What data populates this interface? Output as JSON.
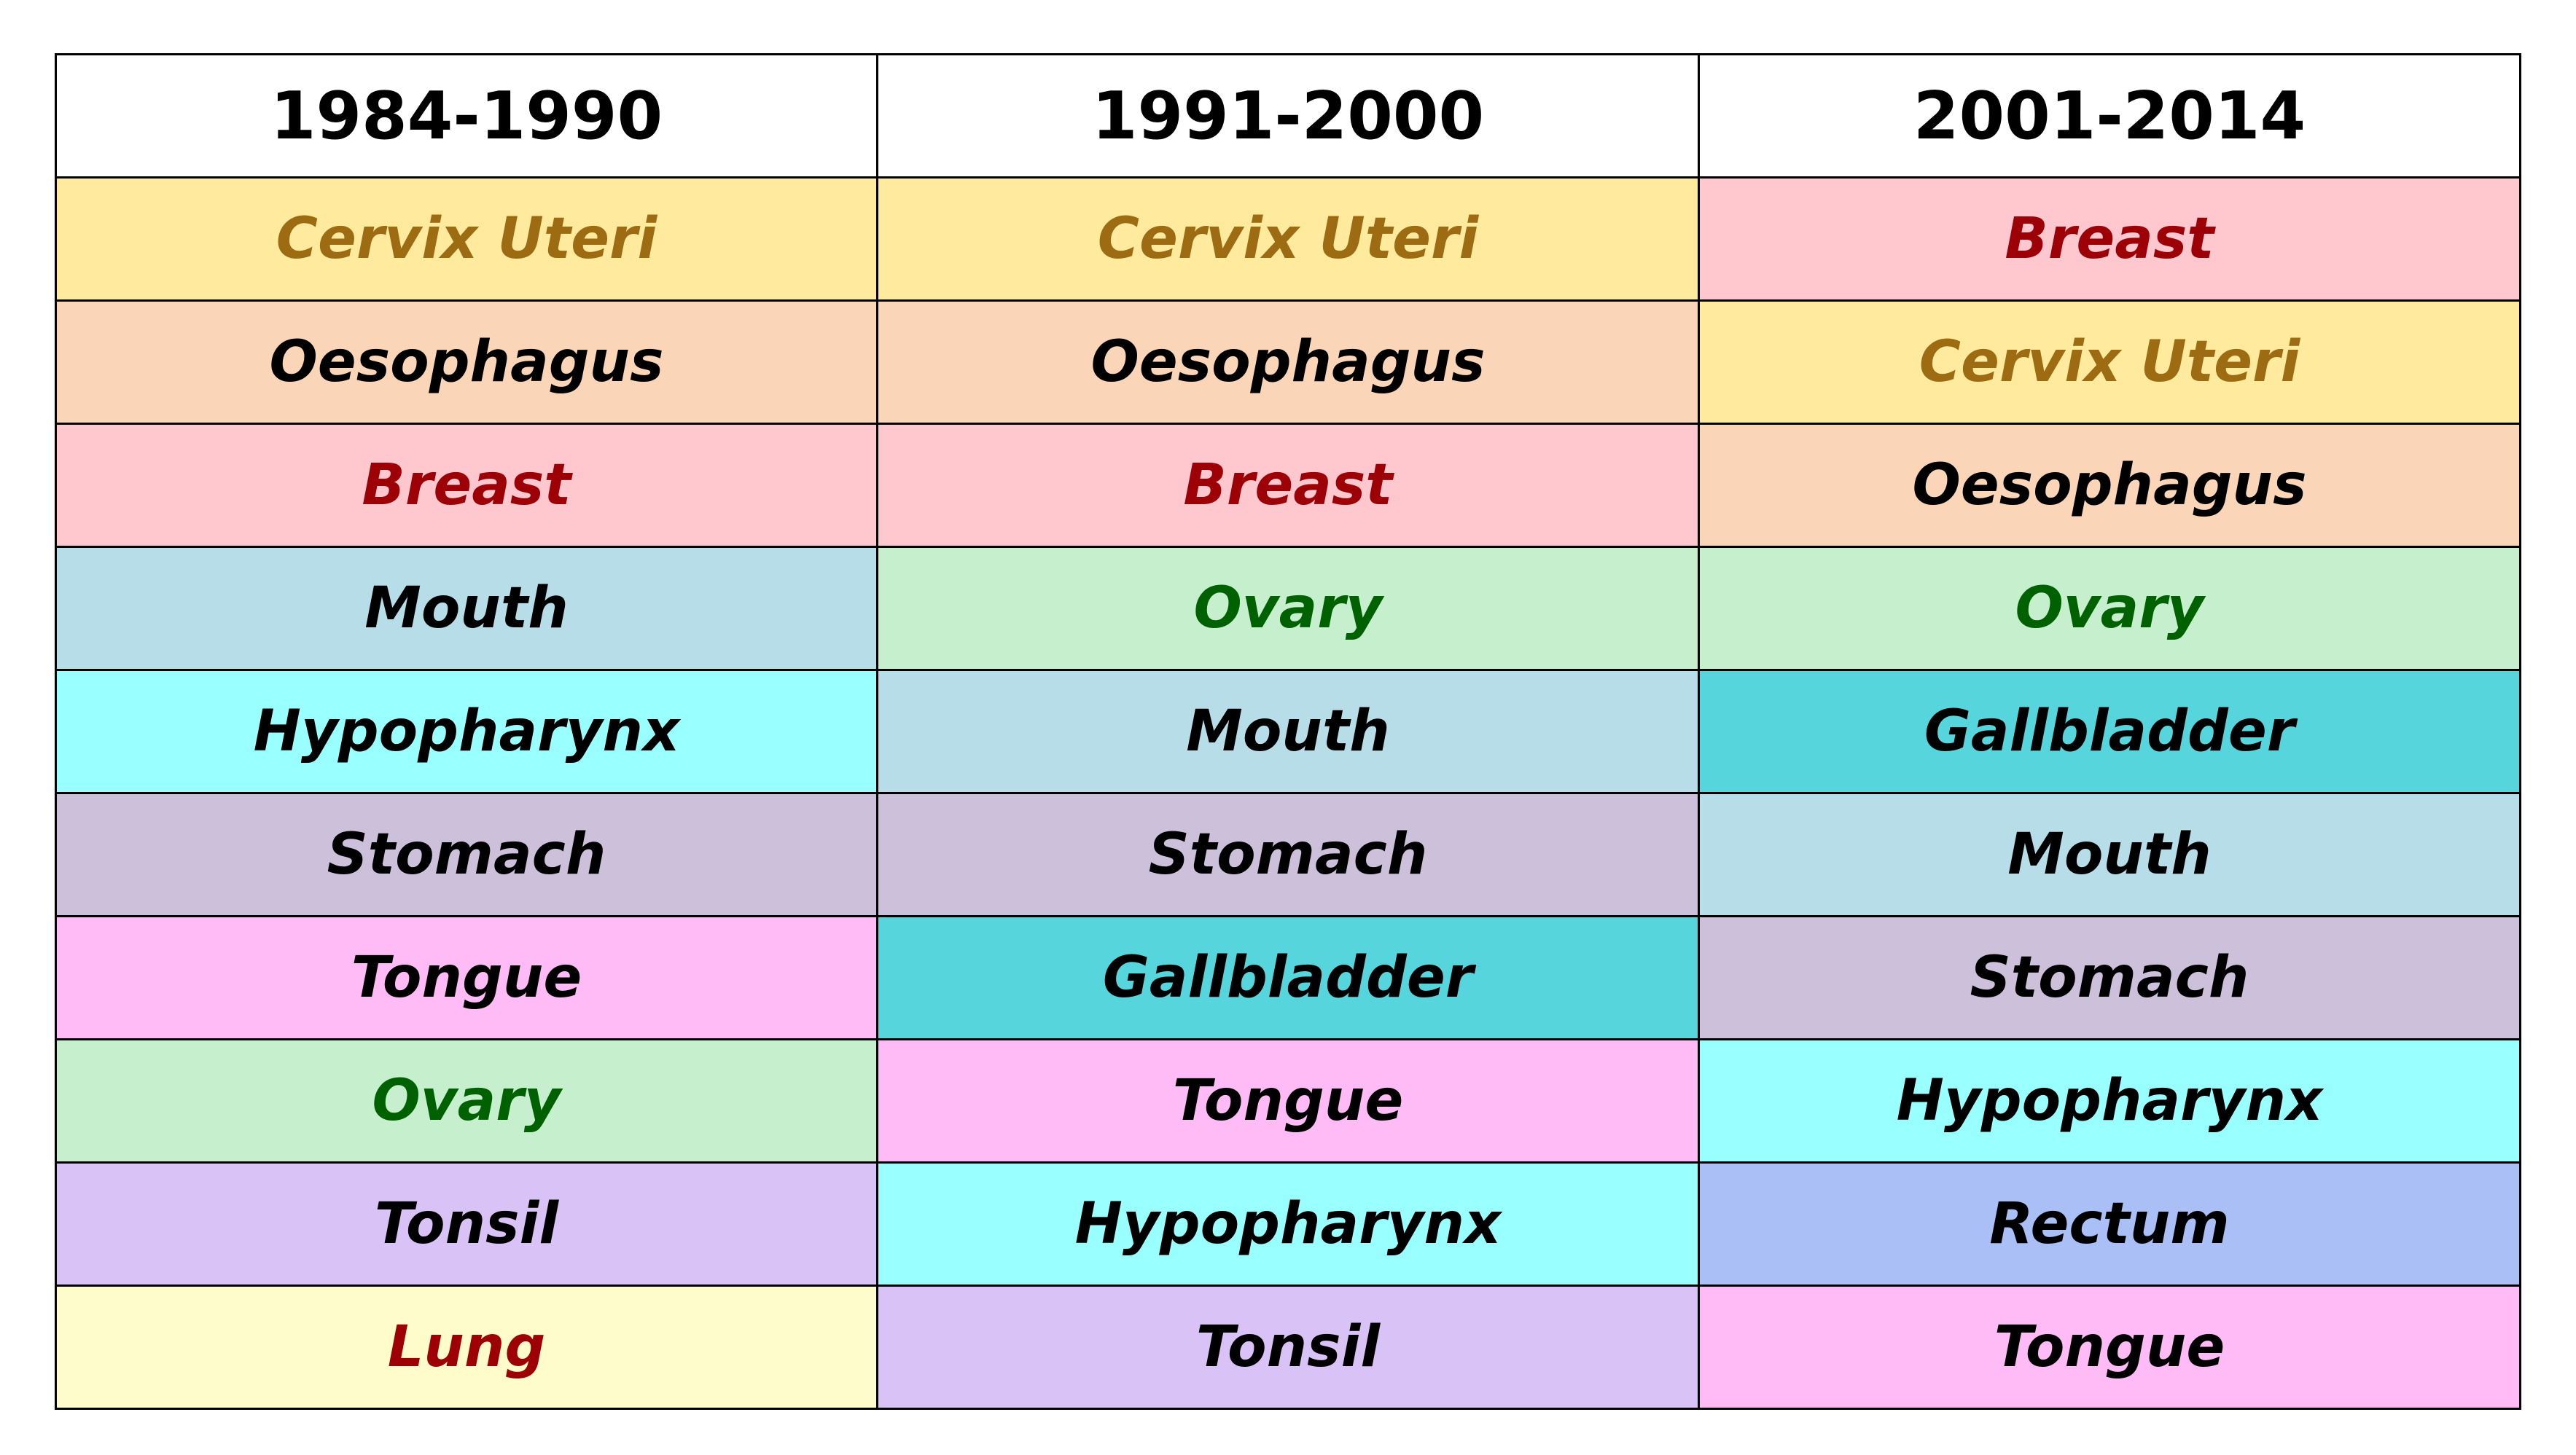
{
  "table": {
    "headers": [
      "1984-1990",
      "1991-2000",
      "2001-2014"
    ],
    "colors": {
      "Cervix Uteri": {
        "bg": "#FFEA9E",
        "fg": "#9C6B12"
      },
      "Oesophagus": {
        "bg": "#FBD5B8",
        "fg": "#000000"
      },
      "Breast": {
        "bg": "#FFC7CE",
        "fg": "#9C0006"
      },
      "Mouth": {
        "bg": "#B6DDE8",
        "fg": "#000000"
      },
      "Hypopharynx": {
        "bg": "#99FFFF",
        "fg": "#000000"
      },
      "Stomach": {
        "bg": "#CCC0DA",
        "fg": "#000000"
      },
      "Tongue": {
        "bg": "#FFBBF5",
        "fg": "#000000"
      },
      "Ovary": {
        "bg": "#C6EFCE",
        "fg": "#006100"
      },
      "Tonsil": {
        "bg": "#D9C2F5",
        "fg": "#000000"
      },
      "Lung": {
        "bg": "#FFFCCB",
        "fg": "#9C0006"
      },
      "Gallbladder": {
        "bg": "#56D5DC",
        "fg": "#000000"
      },
      "Rectum": {
        "bg": "#A9BFF5",
        "fg": "#000000"
      }
    },
    "rows": [
      [
        "Cervix Uteri",
        "Cervix Uteri",
        "Breast"
      ],
      [
        "Oesophagus",
        "Oesophagus",
        "Cervix Uteri"
      ],
      [
        "Breast",
        "Breast",
        "Oesophagus"
      ],
      [
        "Mouth",
        "Ovary",
        "Ovary"
      ],
      [
        "Hypopharynx",
        "Mouth",
        "Gallbladder"
      ],
      [
        "Stomach",
        "Stomach",
        "Mouth"
      ],
      [
        "Tongue",
        "Gallbladder",
        "Stomach"
      ],
      [
        "Ovary",
        "Tongue",
        "Hypopharynx"
      ],
      [
        "Tonsil",
        "Hypopharynx",
        "Rectum"
      ],
      [
        "Lung",
        "Tonsil",
        "Tongue"
      ]
    ]
  }
}
